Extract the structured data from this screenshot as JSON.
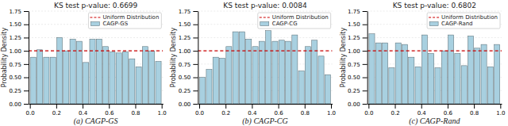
{
  "chart_data": [
    {
      "type": "histogram",
      "title": "KS test p-value: 0.6699",
      "caption": "(a) CAGP-GS",
      "y_label": "Probability Density",
      "bins": [
        0.0,
        0.05,
        0.1,
        0.15,
        0.2,
        0.25,
        0.3,
        0.35,
        0.4,
        0.45,
        0.5,
        0.55,
        0.6,
        0.65,
        0.7,
        0.75,
        0.8,
        0.85,
        0.9,
        0.95,
        1.0
      ],
      "series": [
        {
          "name": "Uniform Distribution",
          "type": "line",
          "line_style": "dashed",
          "color": "#cc0000",
          "x": [
            -0.01,
            1.01
          ],
          "values": [
            1.0,
            1.0
          ]
        },
        {
          "name": "CAGP-GS",
          "type": "bar",
          "color": "#a8d0e0",
          "values": [
            0.88,
            1.02,
            0.88,
            0.88,
            1.25,
            1.0,
            1.22,
            1.18,
            0.78,
            1.22,
            1.22,
            1.08,
            0.98,
            0.96,
            0.98,
            0.85,
            0.7,
            1.08,
            1.0,
            0.8
          ]
        }
      ],
      "xlim": [
        -0.01,
        1.01
      ],
      "xticks": [
        {
          "value": 0.0,
          "label": "0.0"
        },
        0.2,
        0.4,
        0.6,
        0.8,
        {
          "value": 1.0,
          "label": "1.0"
        }
      ],
      "ylim": [
        0.0,
        1.75
      ],
      "yticks": [
        {
          "value": 0.0,
          "label": "0.00"
        },
        0.25,
        {
          "value": 0.5,
          "label": "0.50"
        },
        0.75,
        {
          "value": 1.0,
          "label": "1.00"
        },
        1.25,
        {
          "value": 1.5,
          "label": "1.50"
        },
        1.75
      ],
      "grid": true,
      "legend": "upper right"
    },
    {
      "type": "histogram",
      "title": "KS test p-value: 0.0084",
      "caption": "(b) CAGP-CG",
      "y_label": "Probability Density",
      "bins": [
        0.0,
        0.05,
        0.1,
        0.15,
        0.2,
        0.25,
        0.3,
        0.35,
        0.4,
        0.45,
        0.5,
        0.55,
        0.6,
        0.65,
        0.7,
        0.75,
        0.8,
        0.85,
        0.9,
        0.95,
        1.0
      ],
      "series": [
        {
          "name": "Uniform Distribution",
          "type": "line",
          "line_style": "dashed",
          "color": "#cc0000",
          "x": [
            -0.01,
            1.01
          ],
          "values": [
            1.0,
            1.0
          ]
        },
        {
          "name": "CAGP-CG",
          "type": "bar",
          "color": "#a8d0e0",
          "values": [
            0.5,
            0.65,
            0.88,
            0.86,
            1.08,
            1.36,
            1.36,
            1.22,
            1.08,
            1.18,
            1.38,
            1.18,
            1.2,
            1.18,
            1.3,
            0.62,
            1.08,
            1.2,
            0.9,
            0.55
          ]
        }
      ],
      "xlim": [
        -0.01,
        1.01
      ],
      "xticks": [
        {
          "value": 0.0,
          "label": "0.0"
        },
        0.2,
        0.4,
        0.6,
        0.8,
        {
          "value": 1.0,
          "label": "1.0"
        }
      ],
      "ylim": [
        0.0,
        1.75
      ],
      "yticks": [
        {
          "value": 0.0,
          "label": "0.00"
        },
        0.25,
        {
          "value": 0.5,
          "label": "0.50"
        },
        0.75,
        {
          "value": 1.0,
          "label": "1.00"
        },
        1.25,
        {
          "value": 1.5,
          "label": "1.50"
        },
        1.75
      ],
      "grid": true,
      "legend": "upper right"
    },
    {
      "type": "histogram",
      "title": "KS test p-value: 0.6802",
      "caption": "(c) CAGP-Rand",
      "y_label": "Probability Density",
      "bins": [
        0.0,
        0.05,
        0.1,
        0.15,
        0.2,
        0.25,
        0.3,
        0.35,
        0.4,
        0.45,
        0.5,
        0.55,
        0.6,
        0.65,
        0.7,
        0.75,
        0.8,
        0.85,
        0.9,
        0.95,
        1.0
      ],
      "series": [
        {
          "name": "Uniform Distribution",
          "type": "line",
          "line_style": "dashed",
          "color": "#cc0000",
          "x": [
            -0.01,
            1.01
          ],
          "values": [
            1.0,
            1.0
          ]
        },
        {
          "name": "CAGP-Rand",
          "type": "bar",
          "color": "#a8d0e0",
          "values": [
            1.32,
            1.15,
            1.15,
            0.68,
            1.15,
            1.12,
            0.88,
            0.7,
            1.3,
            0.95,
            0.68,
            1.0,
            1.3,
            0.95,
            0.72,
            1.28,
            1.05,
            1.12,
            0.7,
            1.12
          ]
        }
      ],
      "xlim": [
        -0.01,
        1.01
      ],
      "xticks": [
        {
          "value": 0.0,
          "label": "0.0"
        },
        0.2,
        0.4,
        0.6,
        0.8,
        {
          "value": 1.0,
          "label": "1.0"
        }
      ],
      "ylim": [
        0.0,
        1.75
      ],
      "yticks": [
        {
          "value": 0.0,
          "label": "0.00"
        },
        0.25,
        {
          "value": 0.5,
          "label": "0.50"
        },
        0.75,
        {
          "value": 1.0,
          "label": "1.00"
        },
        1.25,
        {
          "value": 1.5,
          "label": "1.50"
        },
        1.75
      ],
      "grid": true,
      "legend": "upper right"
    }
  ]
}
